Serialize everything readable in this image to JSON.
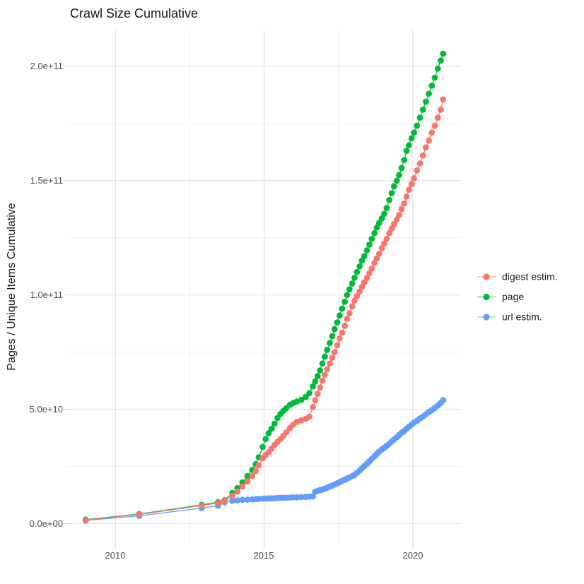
{
  "title": "Crawl Size Cumulative",
  "y_axis": {
    "label": "Pages / Unique Items Cumulative",
    "ticks": [
      "0.0e+00",
      "5.0e+10",
      "1.0e+11",
      "1.5e+11",
      "2.0e+11"
    ],
    "tick_values": [
      0,
      50000000000.0,
      100000000000.0,
      150000000000.0,
      200000000000.0
    ]
  },
  "x_axis": {
    "ticks": [
      "2010",
      "2015",
      "2020"
    ],
    "tick_values": [
      2010,
      2015,
      2020
    ]
  },
  "legend": {
    "items": [
      {
        "label": "digest estim.",
        "color": "#F8766D"
      },
      {
        "label": "page",
        "color": "#00BA38"
      },
      {
        "label": "url estim.",
        "color": "#619CFF"
      }
    ]
  },
  "chart_data": {
    "type": "line",
    "title": "Crawl Size Cumulative",
    "xlabel": "",
    "ylabel": "Pages / Unique Items Cumulative",
    "y_unit": "pages (values below are in billions, i.e. 1e9)",
    "xlim": [
      2008.4,
      2021.62
    ],
    "ylim_billions": [
      -8.8,
      215.7
    ],
    "x_major": [
      2010,
      2015,
      2020
    ],
    "x_minor": [
      2012.5,
      2017.5
    ],
    "y_major_billions": [
      0,
      50,
      100,
      150,
      200
    ],
    "y_minor_billions": [
      25,
      75,
      125,
      175
    ],
    "grid": true,
    "legend_position": "right",
    "marker_radius": 4.4,
    "series": [
      {
        "name": "digest estim.",
        "color": "#F8766D",
        "points": [
          [
            2009.0,
            1.6
          ],
          [
            2010.8,
            4.0
          ],
          [
            2012.9,
            7.9
          ],
          [
            2013.45,
            9.0
          ],
          [
            2013.67,
            9.9
          ],
          [
            2013.93,
            12.2
          ],
          [
            2014.1,
            14.0
          ],
          [
            2014.27,
            16.2
          ],
          [
            2014.44,
            18.5
          ],
          [
            2014.6,
            20.8
          ],
          [
            2014.72,
            23.0
          ],
          [
            2014.82,
            25.5
          ],
          [
            2014.95,
            28.5
          ],
          [
            2015.05,
            30.0
          ],
          [
            2015.15,
            31.2
          ],
          [
            2015.25,
            32.8
          ],
          [
            2015.35,
            34.4
          ],
          [
            2015.45,
            35.8
          ],
          [
            2015.55,
            37.0
          ],
          [
            2015.65,
            38.4
          ],
          [
            2015.75,
            40.0
          ],
          [
            2015.87,
            41.8
          ],
          [
            2015.98,
            43.3
          ],
          [
            2016.1,
            44.5
          ],
          [
            2016.25,
            45.2
          ],
          [
            2016.4,
            45.8
          ],
          [
            2016.52,
            46.8
          ],
          [
            2016.64,
            51.0
          ],
          [
            2016.72,
            54.0
          ],
          [
            2016.8,
            56.8
          ],
          [
            2016.88,
            59.5
          ],
          [
            2016.96,
            62.5
          ],
          [
            2017.04,
            65.0
          ],
          [
            2017.12,
            67.5
          ],
          [
            2017.21,
            70.0
          ],
          [
            2017.29,
            72.5
          ],
          [
            2017.37,
            75.0
          ],
          [
            2017.46,
            78.0
          ],
          [
            2017.54,
            81.0
          ],
          [
            2017.62,
            83.5
          ],
          [
            2017.71,
            86.5
          ],
          [
            2017.79,
            89.5
          ],
          [
            2017.87,
            92.0
          ],
          [
            2017.96,
            95.0
          ],
          [
            2018.04,
            97.5
          ],
          [
            2018.12,
            99.5
          ],
          [
            2018.21,
            101.5
          ],
          [
            2018.29,
            103.5
          ],
          [
            2018.37,
            105.5
          ],
          [
            2018.46,
            107.5
          ],
          [
            2018.54,
            109.5
          ],
          [
            2018.62,
            111.5
          ],
          [
            2018.71,
            114.0
          ],
          [
            2018.79,
            116.0
          ],
          [
            2018.87,
            118.0
          ],
          [
            2018.96,
            120.5
          ],
          [
            2019.04,
            122.5
          ],
          [
            2019.12,
            124.5
          ],
          [
            2019.21,
            127.0
          ],
          [
            2019.29,
            129.0
          ],
          [
            2019.37,
            131.0
          ],
          [
            2019.46,
            133.0
          ],
          [
            2019.54,
            135.0
          ],
          [
            2019.62,
            137.5
          ],
          [
            2019.71,
            140.0
          ],
          [
            2019.79,
            143.0
          ],
          [
            2019.87,
            146.0
          ],
          [
            2019.96,
            148.5
          ],
          [
            2020.04,
            151.0
          ],
          [
            2020.14,
            154.5
          ],
          [
            2020.24,
            157.5
          ],
          [
            2020.34,
            161.0
          ],
          [
            2020.44,
            164.5
          ],
          [
            2020.54,
            167.5
          ],
          [
            2020.64,
            171.0
          ],
          [
            2020.74,
            174.0
          ],
          [
            2020.84,
            177.5
          ],
          [
            2020.94,
            181.0
          ],
          [
            2021.02,
            185.5
          ]
        ]
      },
      {
        "name": "page",
        "color": "#00BA38",
        "points": [
          [
            2009.0,
            1.8
          ],
          [
            2010.8,
            4.2
          ],
          [
            2012.9,
            8.2
          ],
          [
            2013.45,
            9.4
          ],
          [
            2013.67,
            10.2
          ],
          [
            2013.93,
            13.4
          ],
          [
            2014.1,
            15.5
          ],
          [
            2014.27,
            18.0
          ],
          [
            2014.44,
            20.8
          ],
          [
            2014.6,
            23.5
          ],
          [
            2014.72,
            26.0
          ],
          [
            2014.82,
            29.0
          ],
          [
            2014.95,
            33.5
          ],
          [
            2015.05,
            37.0
          ],
          [
            2015.15,
            39.5
          ],
          [
            2015.25,
            41.5
          ],
          [
            2015.35,
            43.7
          ],
          [
            2015.45,
            46.2
          ],
          [
            2015.55,
            48.0
          ],
          [
            2015.65,
            49.3
          ],
          [
            2015.75,
            50.5
          ],
          [
            2015.87,
            52.0
          ],
          [
            2015.98,
            52.7
          ],
          [
            2016.1,
            53.4
          ],
          [
            2016.25,
            54.1
          ],
          [
            2016.4,
            55.4
          ],
          [
            2016.52,
            57.0
          ],
          [
            2016.64,
            60.0
          ],
          [
            2016.72,
            62.2
          ],
          [
            2016.8,
            64.5
          ],
          [
            2016.88,
            67.0
          ],
          [
            2016.96,
            70.0
          ],
          [
            2017.04,
            73.0
          ],
          [
            2017.12,
            76.0
          ],
          [
            2017.21,
            79.0
          ],
          [
            2017.29,
            82.0
          ],
          [
            2017.37,
            85.0
          ],
          [
            2017.46,
            88.0
          ],
          [
            2017.54,
            91.0
          ],
          [
            2017.62,
            94.0
          ],
          [
            2017.71,
            97.0
          ],
          [
            2017.79,
            100.0
          ],
          [
            2017.87,
            102.5
          ],
          [
            2017.96,
            105.0
          ],
          [
            2018.04,
            107.5
          ],
          [
            2018.12,
            110.0
          ],
          [
            2018.21,
            112.5
          ],
          [
            2018.29,
            115.0
          ],
          [
            2018.37,
            117.0
          ],
          [
            2018.46,
            119.5
          ],
          [
            2018.54,
            122.0
          ],
          [
            2018.62,
            124.5
          ],
          [
            2018.71,
            127.0
          ],
          [
            2018.79,
            129.5
          ],
          [
            2018.87,
            131.5
          ],
          [
            2018.96,
            133.5
          ],
          [
            2019.04,
            135.5
          ],
          [
            2019.12,
            138.0
          ],
          [
            2019.21,
            141.5
          ],
          [
            2019.29,
            144.5
          ],
          [
            2019.37,
            147.5
          ],
          [
            2019.46,
            150.0
          ],
          [
            2019.54,
            152.5
          ],
          [
            2019.62,
            155.5
          ],
          [
            2019.71,
            159.0
          ],
          [
            2019.79,
            163.0
          ],
          [
            2019.87,
            165.5
          ],
          [
            2019.96,
            168.5
          ],
          [
            2020.04,
            171.0
          ],
          [
            2020.14,
            174.0
          ],
          [
            2020.24,
            177.5
          ],
          [
            2020.34,
            181.0
          ],
          [
            2020.44,
            184.5
          ],
          [
            2020.54,
            188.0
          ],
          [
            2020.64,
            191.5
          ],
          [
            2020.74,
            195.0
          ],
          [
            2020.84,
            199.0
          ],
          [
            2020.94,
            202.5
          ],
          [
            2021.02,
            205.5
          ]
        ]
      },
      {
        "name": "url estim.",
        "color": "#619CFF",
        "points": [
          [
            2009.0,
            1.4
          ],
          [
            2010.8,
            3.4
          ],
          [
            2012.9,
            6.8
          ],
          [
            2013.45,
            7.8
          ],
          [
            2013.67,
            9.3
          ],
          [
            2013.93,
            10.0
          ],
          [
            2014.1,
            10.2
          ],
          [
            2014.27,
            10.4
          ],
          [
            2014.44,
            10.5
          ],
          [
            2014.6,
            10.6
          ],
          [
            2014.72,
            10.7
          ],
          [
            2014.82,
            10.8
          ],
          [
            2014.95,
            10.9
          ],
          [
            2015.05,
            11.0
          ],
          [
            2015.15,
            11.0
          ],
          [
            2015.25,
            11.1
          ],
          [
            2015.35,
            11.1
          ],
          [
            2015.45,
            11.2
          ],
          [
            2015.55,
            11.2
          ],
          [
            2015.65,
            11.3
          ],
          [
            2015.75,
            11.3
          ],
          [
            2015.87,
            11.4
          ],
          [
            2015.98,
            11.5
          ],
          [
            2016.1,
            11.5
          ],
          [
            2016.25,
            11.6
          ],
          [
            2016.4,
            11.7
          ],
          [
            2016.52,
            11.8
          ],
          [
            2016.64,
            11.9
          ],
          [
            2016.72,
            14.0
          ],
          [
            2016.8,
            14.3
          ],
          [
            2016.88,
            14.6
          ],
          [
            2016.96,
            14.9
          ],
          [
            2017.04,
            15.3
          ],
          [
            2017.12,
            15.7
          ],
          [
            2017.21,
            16.2
          ],
          [
            2017.29,
            16.6
          ],
          [
            2017.37,
            17.1
          ],
          [
            2017.46,
            17.6
          ],
          [
            2017.54,
            18.2
          ],
          [
            2017.62,
            18.7
          ],
          [
            2017.71,
            19.2
          ],
          [
            2017.79,
            19.7
          ],
          [
            2017.87,
            20.2
          ],
          [
            2017.96,
            20.8
          ],
          [
            2018.04,
            21.3
          ],
          [
            2018.12,
            22.2
          ],
          [
            2018.21,
            23.2
          ],
          [
            2018.29,
            24.2
          ],
          [
            2018.37,
            25.2
          ],
          [
            2018.46,
            26.2
          ],
          [
            2018.54,
            27.2
          ],
          [
            2018.62,
            28.3
          ],
          [
            2018.71,
            29.5
          ],
          [
            2018.79,
            30.5
          ],
          [
            2018.87,
            31.5
          ],
          [
            2018.96,
            32.5
          ],
          [
            2019.04,
            33.2
          ],
          [
            2019.12,
            34.0
          ],
          [
            2019.21,
            35.0
          ],
          [
            2019.29,
            36.0
          ],
          [
            2019.37,
            36.8
          ],
          [
            2019.46,
            37.8
          ],
          [
            2019.54,
            38.8
          ],
          [
            2019.62,
            39.7
          ],
          [
            2019.71,
            40.5
          ],
          [
            2019.79,
            41.5
          ],
          [
            2019.87,
            42.4
          ],
          [
            2019.96,
            43.3
          ],
          [
            2020.04,
            44.2
          ],
          [
            2020.14,
            45.0
          ],
          [
            2020.24,
            46.0
          ],
          [
            2020.34,
            46.8
          ],
          [
            2020.44,
            47.8
          ],
          [
            2020.54,
            48.8
          ],
          [
            2020.64,
            49.7
          ],
          [
            2020.74,
            50.6
          ],
          [
            2020.84,
            51.6
          ],
          [
            2020.94,
            52.8
          ],
          [
            2021.02,
            54.0
          ]
        ]
      }
    ]
  }
}
